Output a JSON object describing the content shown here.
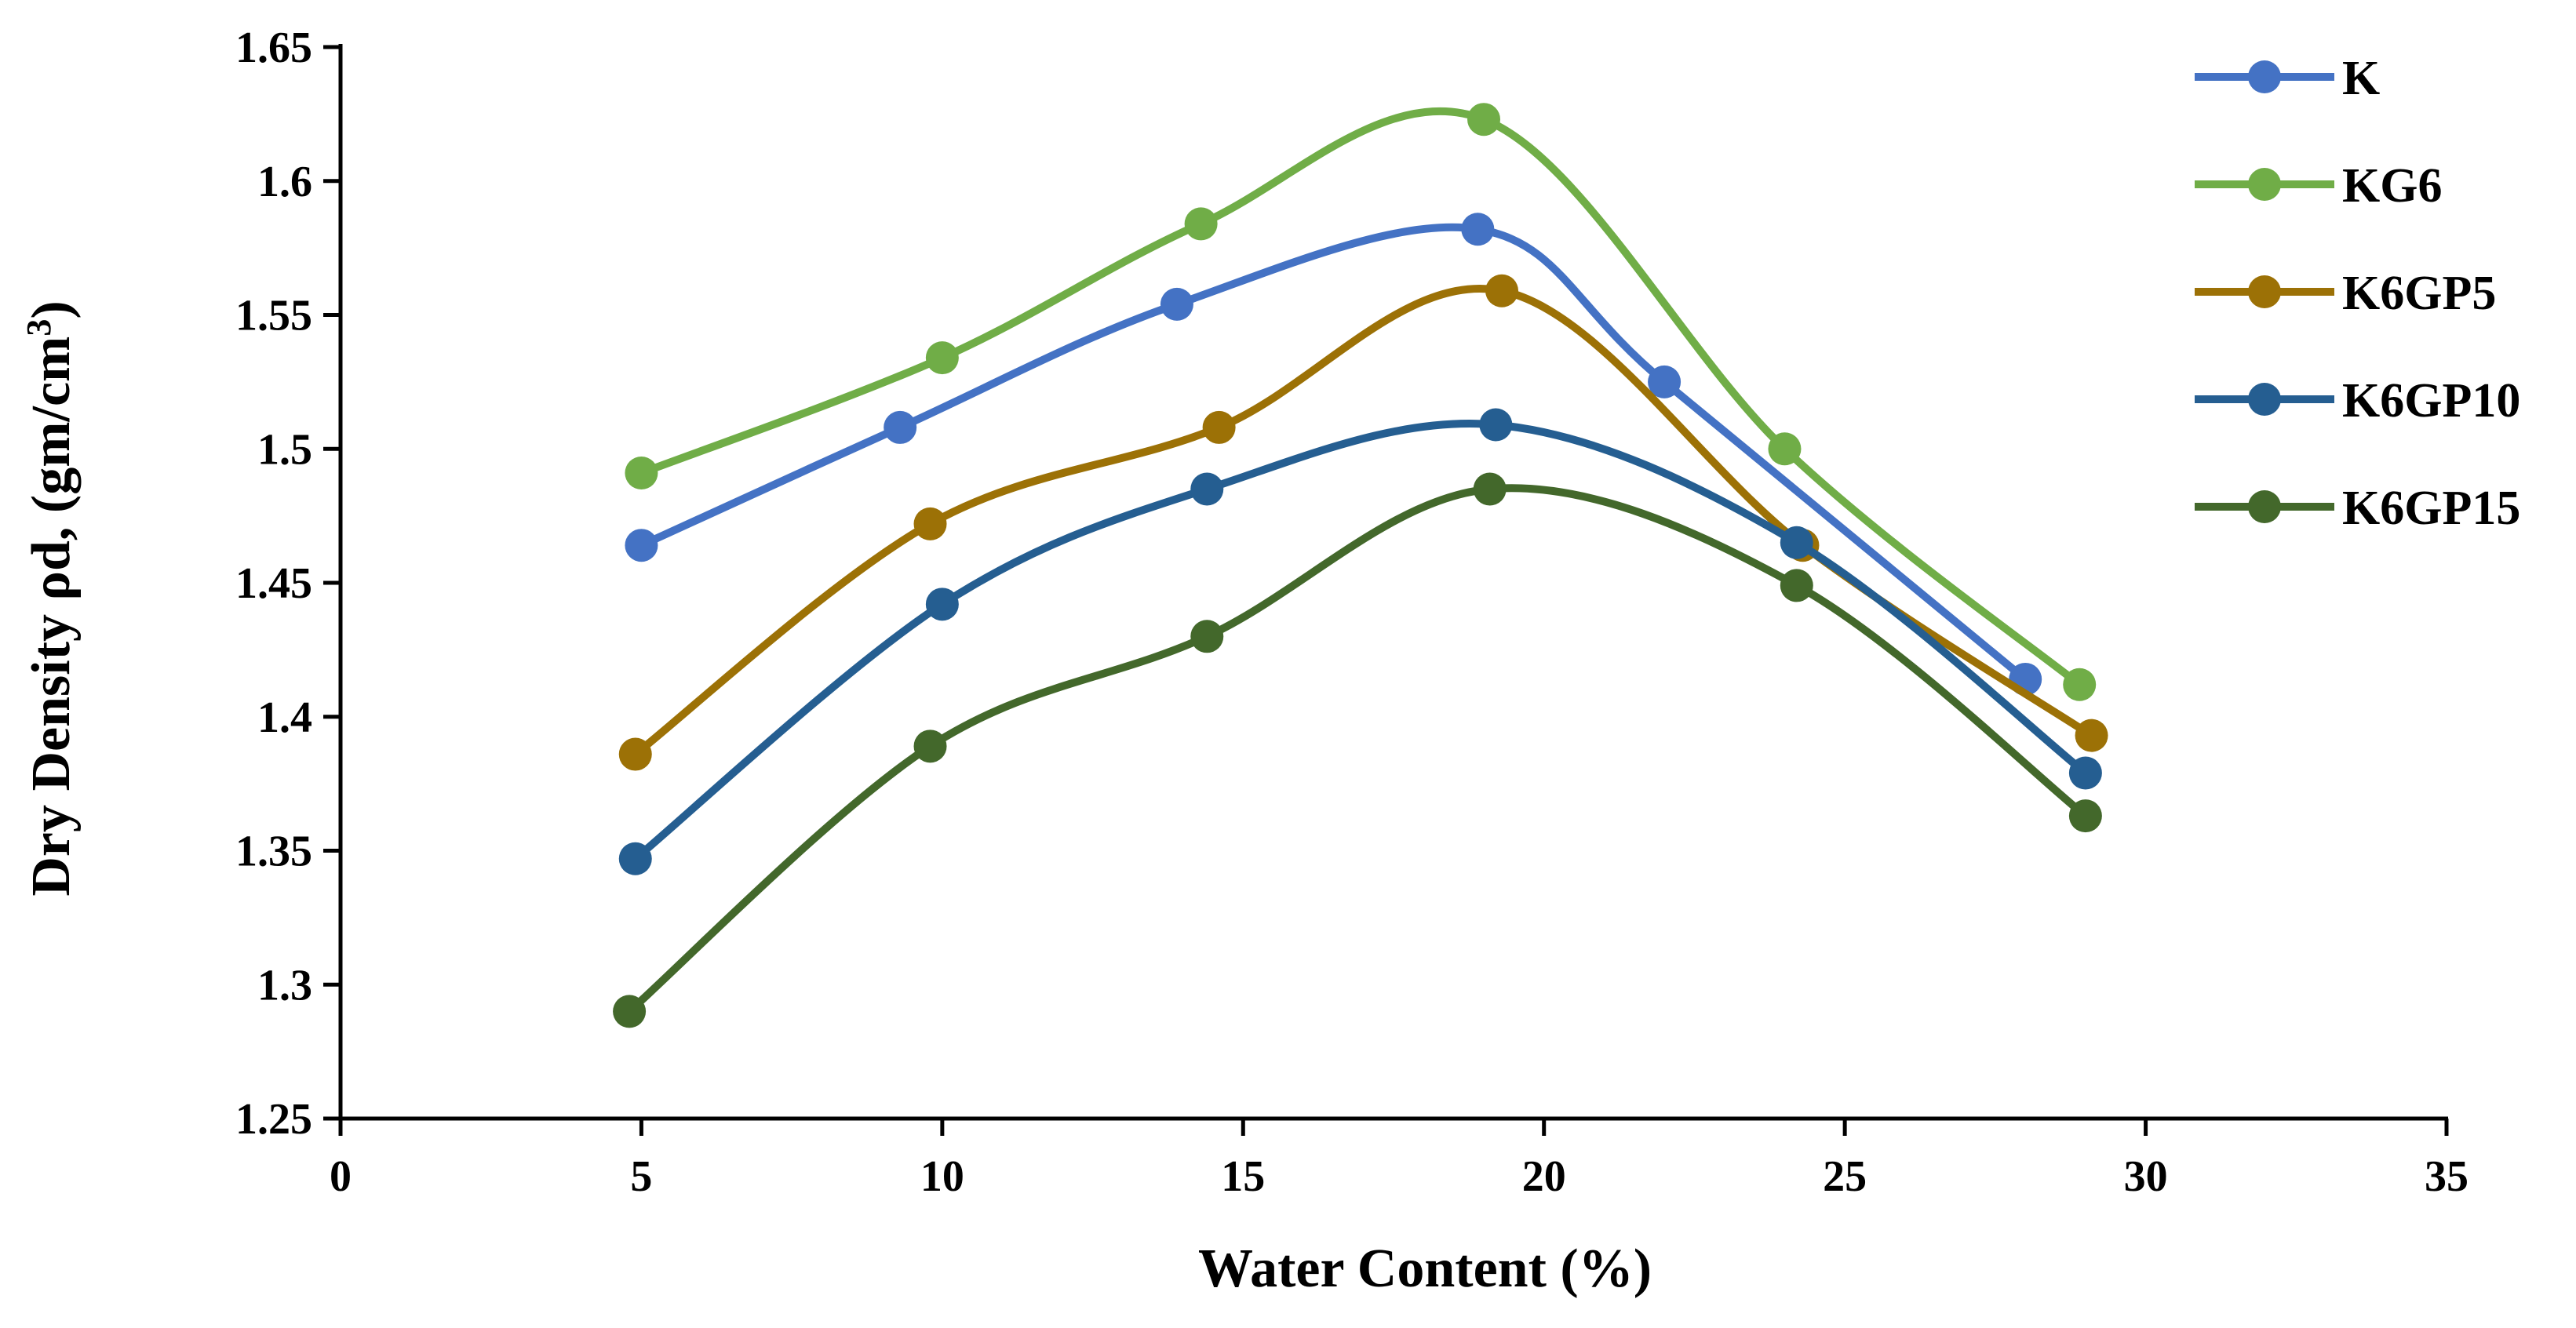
{
  "chart_data": {
    "type": "line",
    "title": "",
    "xlabel": "Water Content (%)",
    "ylabel_main": "Dry Density ρd, (gm/cm",
    "ylabel_sup": "3",
    "ylabel_close": ")",
    "xlim": [
      0,
      35
    ],
    "ylim": [
      1.25,
      1.65
    ],
    "xticks": [
      0,
      5,
      10,
      15,
      20,
      25,
      30,
      35
    ],
    "xtick_labels": [
      "0",
      "5",
      "10",
      "15",
      "20",
      "25",
      "30",
      "35"
    ],
    "yticks": [
      1.25,
      1.3,
      1.35,
      1.4,
      1.45,
      1.5,
      1.55,
      1.6,
      1.65
    ],
    "ytick_labels": [
      "1.25",
      "1.3",
      "1.35",
      "1.4",
      "1.45",
      "1.5",
      "1.55",
      "1.6",
      "1.65"
    ],
    "grid": false,
    "legend_position": "right",
    "series": [
      {
        "name": "K",
        "color": "#4472C4",
        "points": [
          [
            5,
            1.464
          ],
          [
            9.3,
            1.508
          ],
          [
            13.9,
            1.554
          ],
          [
            18.9,
            1.582
          ],
          [
            22,
            1.525
          ],
          [
            28,
            1.414
          ]
        ]
      },
      {
        "name": "KG6",
        "color": "#70AD47",
        "points": [
          [
            5,
            1.491
          ],
          [
            10,
            1.534
          ],
          [
            14.3,
            1.584
          ],
          [
            19,
            1.623
          ],
          [
            24,
            1.5
          ],
          [
            28.9,
            1.412
          ]
        ]
      },
      {
        "name": "K6GP5",
        "color": "#9C7106",
        "points": [
          [
            4.9,
            1.386
          ],
          [
            9.8,
            1.472
          ],
          [
            14.6,
            1.508
          ],
          [
            19.3,
            1.559
          ],
          [
            24.3,
            1.464
          ],
          [
            29.1,
            1.393
          ]
        ]
      },
      {
        "name": "K6GP10",
        "color": "#255E91",
        "points": [
          [
            4.9,
            1.347
          ],
          [
            10,
            1.442
          ],
          [
            14.4,
            1.485
          ],
          [
            19.2,
            1.509
          ],
          [
            24.2,
            1.465
          ],
          [
            29,
            1.379
          ]
        ]
      },
      {
        "name": "K6GP15",
        "color": "#43682B",
        "points": [
          [
            4.8,
            1.29
          ],
          [
            9.8,
            1.389
          ],
          [
            14.4,
            1.43
          ],
          [
            19.1,
            1.485
          ],
          [
            24.2,
            1.449
          ],
          [
            29,
            1.363
          ]
        ]
      }
    ]
  }
}
